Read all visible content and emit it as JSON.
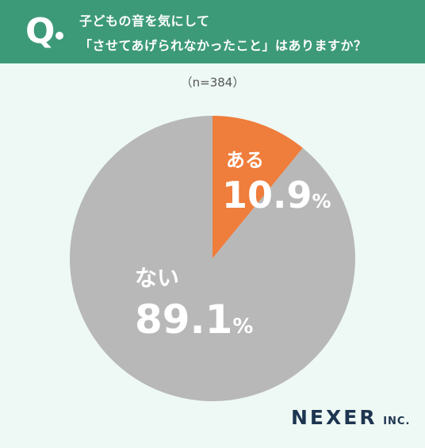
{
  "question": {
    "mark": "Q",
    "line1": "子どもの音を気にして",
    "line2": "「させてあげられなかったこと」はありますか？"
  },
  "sample_size": "（n=384）",
  "chart_data": {
    "type": "pie",
    "title": "子どもの音を気にして「させてあげられなかったこと」はありますか？",
    "slices": [
      {
        "label": "ある",
        "value": 10.9,
        "value_label": "10.9",
        "unit": "%",
        "color": "#ef7d3c"
      },
      {
        "label": "ない",
        "value": 89.1,
        "value_label": "89.1",
        "unit": "%",
        "color": "#b8b8b8"
      }
    ],
    "start": "12 o'clock",
    "direction": "clockwise"
  },
  "brand": {
    "name": "NEXER",
    "suffix": "INC."
  },
  "colors": {
    "header_bg": "#3d9a79",
    "page_bg": "#eef9f5",
    "brand": "#1d3550"
  }
}
